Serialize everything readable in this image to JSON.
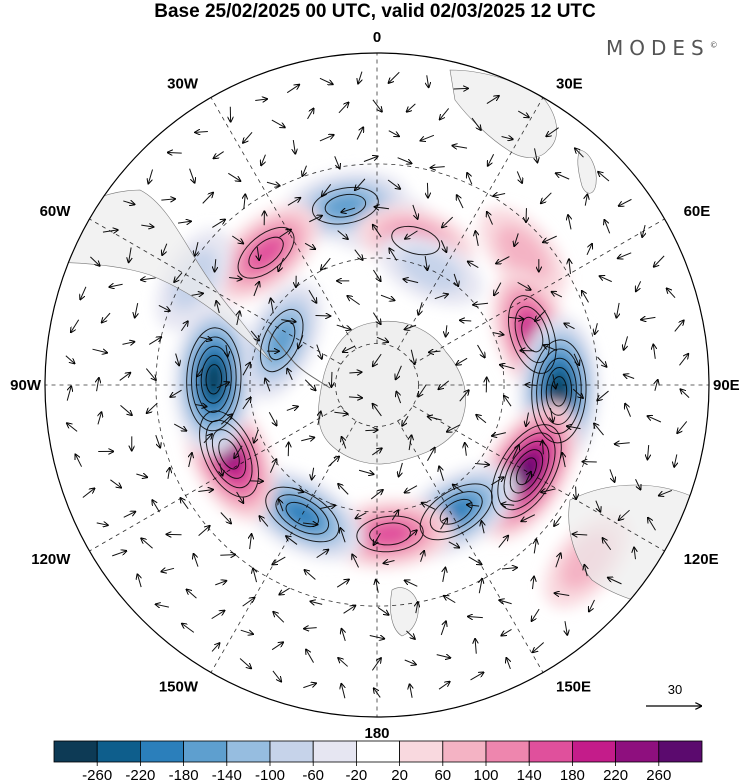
{
  "title": "Base 25/02/2025 00 UTC, valid 02/03/2025 12 UTC",
  "brand": "MODES",
  "brand_mark": "©",
  "chart_data": {
    "type": "heatmap",
    "projection": "south-polar-stereographic",
    "longitude_labels": [
      "0",
      "30E",
      "60E",
      "90E",
      "120E",
      "150E",
      "180",
      "150W",
      "120W",
      "90W",
      "60W",
      "30W"
    ],
    "colorbar": {
      "ticks": [
        "-260",
        "-220",
        "-180",
        "-140",
        "-100",
        "-60",
        "-20",
        "20",
        "60",
        "100",
        "140",
        "180",
        "220",
        "260"
      ],
      "colors": [
        "#0d3a55",
        "#0e5e8c",
        "#2b7fbb",
        "#5e9fcf",
        "#96bde0",
        "#c6d3ea",
        "#e6e6f2",
        "#ffffff",
        "#f9d9df",
        "#f4b3c4",
        "#ee86ae",
        "#e0509c",
        "#c41c8a",
        "#8e0f7e",
        "#5b0a6e"
      ]
    },
    "wind_reference": {
      "label": "30",
      "value": 30
    },
    "anomaly_centers": [
      {
        "lon": 0,
        "lat": -52,
        "value": -60
      },
      {
        "lon": -10,
        "lat": -48,
        "value": -160
      },
      {
        "lon": -40,
        "lat": -50,
        "value": 140
      },
      {
        "lon": 15,
        "lat": -55,
        "value": 100
      },
      {
        "lon": 25,
        "lat": -60,
        "value": -80
      },
      {
        "lon": 48,
        "lat": -45,
        "value": 60
      },
      {
        "lon": 72,
        "lat": -52,
        "value": 180
      },
      {
        "lon": 92,
        "lat": -48,
        "value": -260
      },
      {
        "lon": 120,
        "lat": -50,
        "value": 260
      },
      {
        "lon": 148,
        "lat": -55,
        "value": -180
      },
      {
        "lon": 175,
        "lat": -55,
        "value": 140
      },
      {
        "lon": -150,
        "lat": -55,
        "value": -180
      },
      {
        "lon": -115,
        "lat": -52,
        "value": 220
      },
      {
        "lon": -88,
        "lat": -52,
        "value": -260
      },
      {
        "lon": -65,
        "lat": -65,
        "value": -140
      },
      {
        "lon": -60,
        "lat": -42,
        "value": -60
      },
      {
        "lon": 130,
        "lat": -30,
        "value": 60
      }
    ]
  }
}
